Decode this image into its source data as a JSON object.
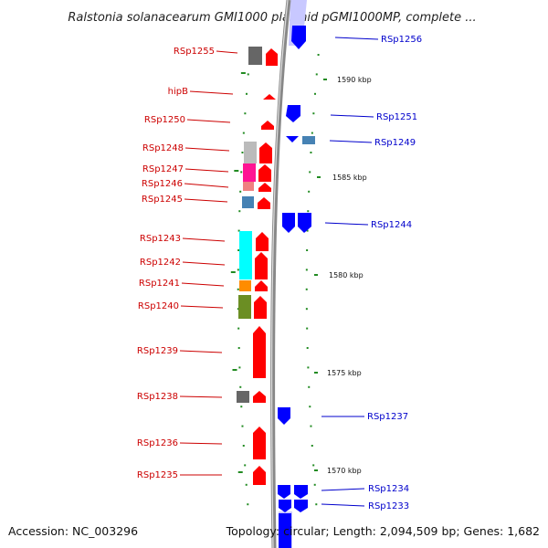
{
  "title": "Ralstonia solanacearum GMI1000 plasmid pGMI1000MP, complete ...",
  "footer": {
    "accession": "Accession: NC_003296",
    "topology": "Topology: circular; Length: 2,094,509 bp; Genes: 1,682"
  },
  "scale_labels": [
    "1590 kbp",
    "1585 kbp",
    "1580 kbp",
    "1575 kbp",
    "1570 kbp"
  ],
  "left_labels": [
    "RSp1255",
    "hipB",
    "RSp1250",
    "RSp1248",
    "RSp1247",
    "RSp1246",
    "RSp1245",
    "RSp1243",
    "RSp1242",
    "RSp1241",
    "RSp1240",
    "RSp1239",
    "RSp1238",
    "RSp1236",
    "RSp1235"
  ],
  "right_labels": [
    "RSp1256",
    "RSp1251",
    "RSp1249",
    "RSp1244",
    "RSp1237",
    "RSp1234",
    "RSp1233"
  ],
  "colors": {
    "reverse_strand": "#ff0000",
    "forward_strand": "#0000ff",
    "backbone": "#888888",
    "tick": "#228b22",
    "cog_gray": "#666666",
    "cog_light_gray": "#bbbbbb",
    "cog_magenta": "#ff1493",
    "cog_pink": "#f08080",
    "cog_steel": "#4682b4",
    "cog_cyan": "#00ffff",
    "cog_orange": "#ff8c00",
    "cog_olive": "#6b8e23"
  }
}
